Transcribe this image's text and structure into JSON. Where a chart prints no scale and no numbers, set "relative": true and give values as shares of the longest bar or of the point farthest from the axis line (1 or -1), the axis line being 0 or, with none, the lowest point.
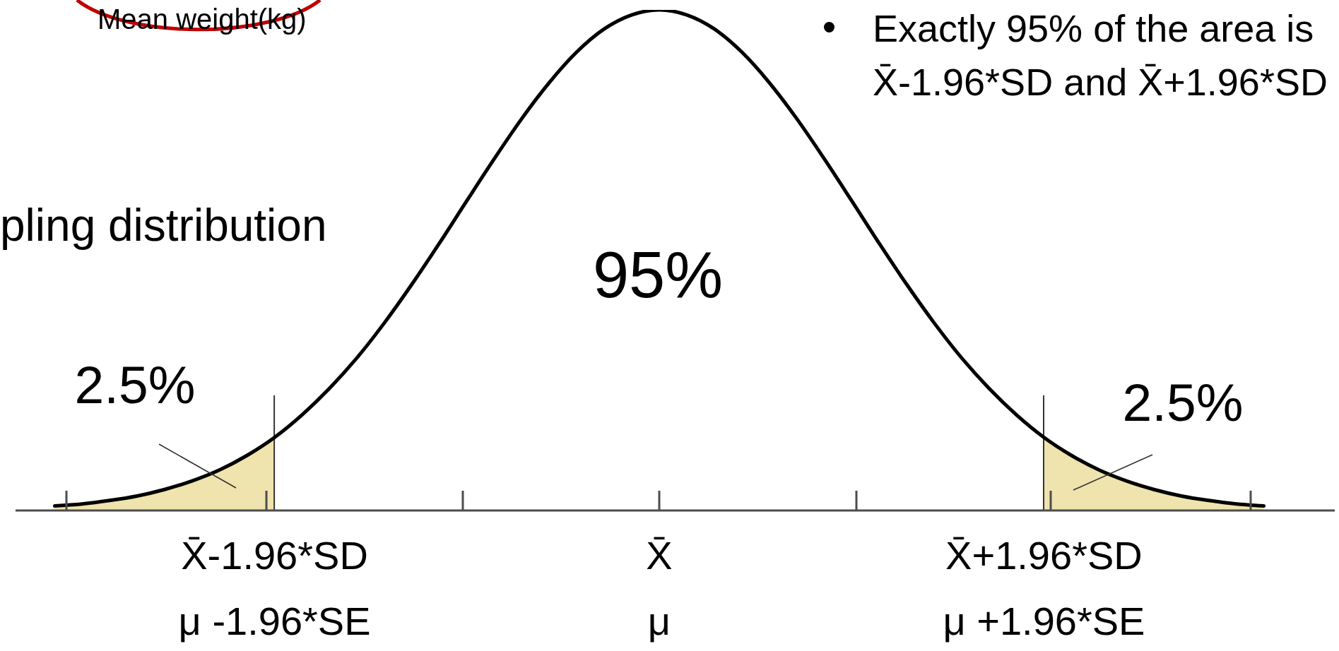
{
  "chart_data": {
    "type": "line",
    "relative": true,
    "categories": [
      null,
      null,
      null,
      null,
      null,
      null,
      null,
      null,
      "X̄-1.96*SD\nμ -1.96*SE",
      null,
      null,
      null,
      null,
      null,
      null,
      null,
      null,
      null,
      null,
      null,
      null,
      null,
      "X̄\nμ",
      null,
      null,
      null,
      null,
      null,
      null,
      null,
      null,
      null,
      null,
      null,
      null,
      null,
      "X̄+1.96*SD\nμ +1.96*SE",
      null,
      null,
      null,
      null,
      null,
      null,
      null,
      null
    ],
    "series": [
      {
        "type": "area",
        "color": "#efe3ae",
        "values": [
          0.009,
          0.013,
          0.02,
          0.029,
          0.042,
          0.059,
          0.081,
          0.11,
          0.146,
          null,
          null,
          null,
          null,
          null,
          null,
          null,
          null,
          null,
          null,
          null,
          null,
          null,
          null,
          null,
          null,
          null,
          null,
          null,
          null,
          null,
          null,
          null,
          null,
          null,
          null,
          null,
          0.146,
          0.11,
          0.081,
          0.059,
          0.042,
          0.029,
          0.02,
          0.013,
          0.009
        ]
      },
      {
        "color": "#000000",
        "values": [
          0.009,
          0.013,
          0.02,
          0.029,
          0.042,
          0.059,
          0.081,
          0.11,
          0.146,
          0.191,
          0.244,
          0.305,
          0.375,
          0.452,
          0.534,
          0.619,
          0.703,
          0.783,
          0.855,
          0.916,
          0.962,
          0.99,
          1,
          0.99,
          0.962,
          0.916,
          0.855,
          0.783,
          0.703,
          0.619,
          0.534,
          0.452,
          0.375,
          0.305,
          0.244,
          0.191,
          0.146,
          0.11,
          0.081,
          0.059,
          0.042,
          0.029,
          0.02,
          0.013,
          0.009
        ]
      },
      {
        "type": "bar",
        "color": "#333333",
        "values": [
          null,
          null,
          null,
          null,
          null,
          null,
          null,
          null,
          0.23,
          null,
          null,
          null,
          null,
          null,
          null,
          null,
          null,
          null,
          null,
          null,
          null,
          null,
          null,
          null,
          null,
          null,
          null,
          null,
          null,
          null,
          null,
          null,
          null,
          null,
          null,
          null,
          0.23,
          null,
          null,
          null,
          null,
          null,
          null,
          null,
          null
        ]
      }
    ],
    "annotations": [
      "Mean weight(kg)",
      "pling distribution",
      "Exactly 95% of the area is\nX̄-1.96*SD and X̄+1.96*SD",
      "95%",
      "2.5%",
      "2.5%"
    ]
  }
}
